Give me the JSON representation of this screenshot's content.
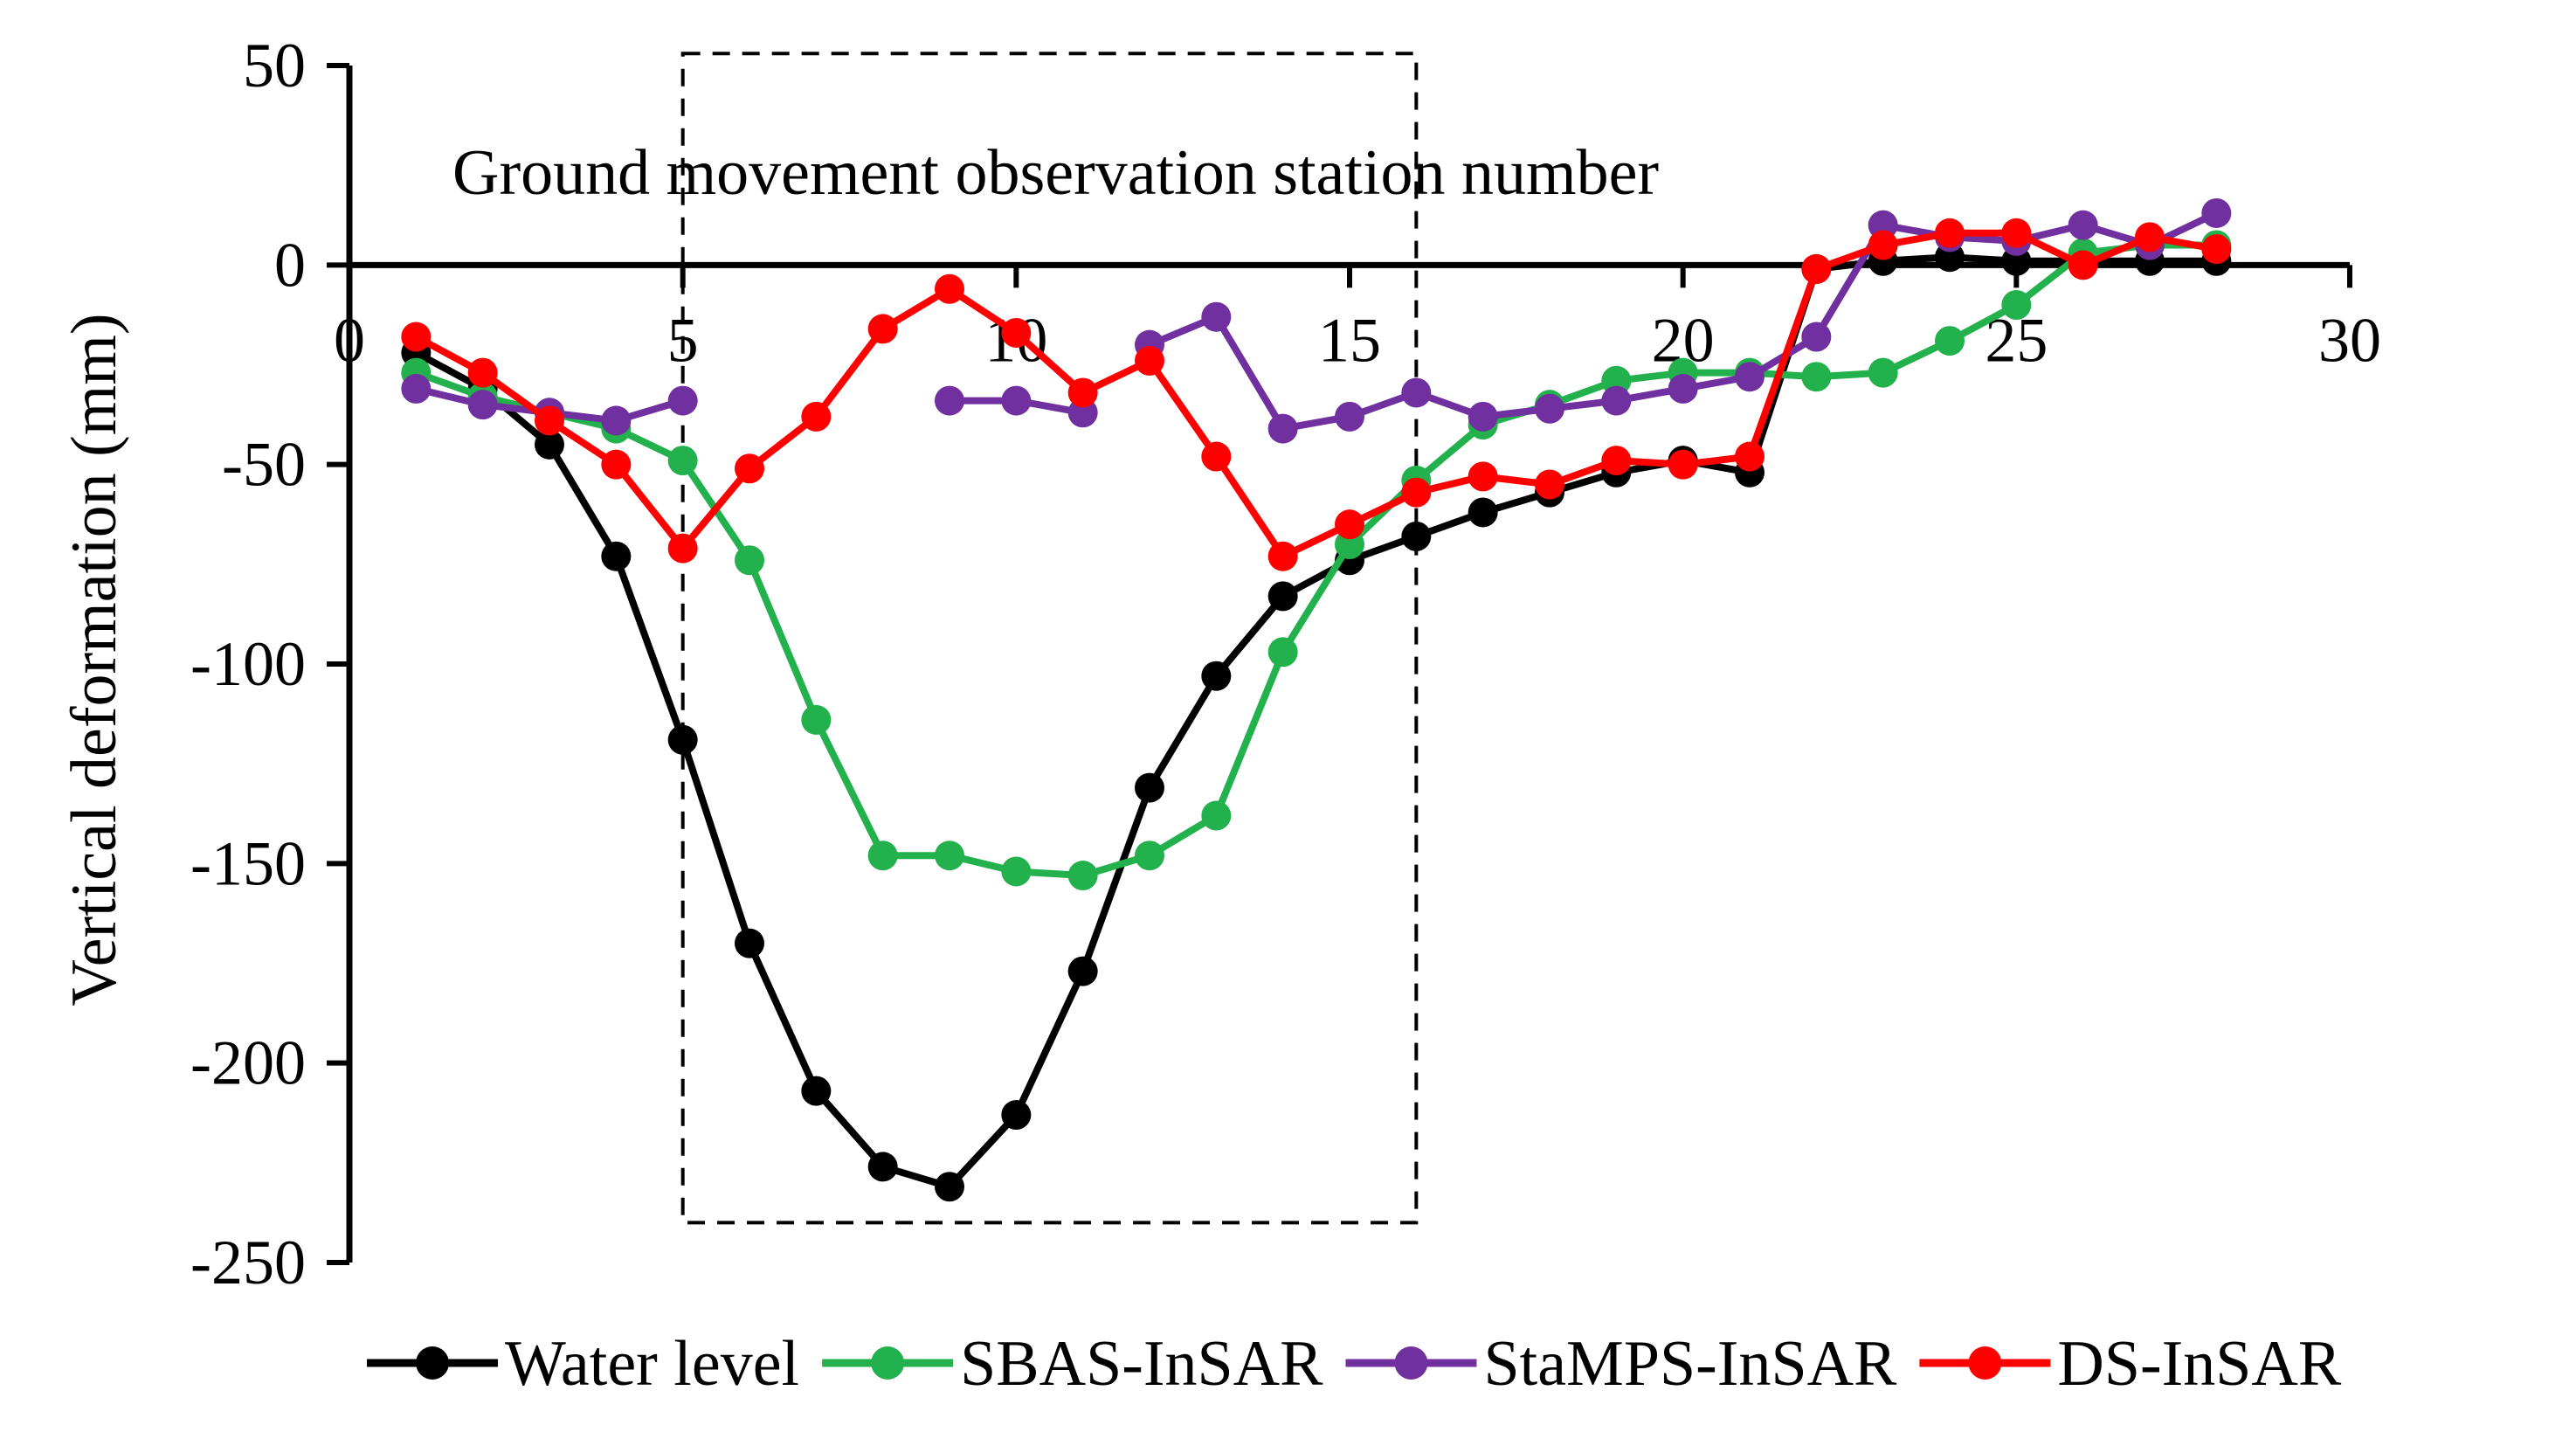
{
  "chart_data": {
    "type": "line",
    "title": "",
    "xlabel": "Ground movement observation station number",
    "ylabel": "Vertical deformation (mm)",
    "xlim": [
      0,
      30
    ],
    "ylim": [
      -250,
      50
    ],
    "xticks": [
      0,
      5,
      10,
      15,
      20,
      25,
      30
    ],
    "yticks": [
      50,
      0,
      -50,
      -100,
      -150,
      -200,
      -250
    ],
    "grid": false,
    "legend_position": "bottom",
    "highlight_box": {
      "x_range": [
        5,
        16
      ],
      "y_range": [
        -240,
        53
      ],
      "style": "dashed"
    },
    "series": [
      {
        "name": "Water level",
        "color": "#000000",
        "points": [
          [
            1,
            -22
          ],
          [
            2,
            -31
          ],
          [
            3,
            -45
          ],
          [
            4,
            -73
          ],
          [
            5,
            -119
          ],
          [
            6,
            -170
          ],
          [
            7,
            -207
          ],
          [
            8,
            -226
          ],
          [
            9,
            -231
          ],
          [
            10,
            -213
          ],
          [
            11,
            -177
          ],
          [
            12,
            -131
          ],
          [
            13,
            -103
          ],
          [
            14,
            -83
          ],
          [
            15,
            -74
          ],
          [
            16,
            -68
          ],
          [
            17,
            -62
          ],
          [
            18,
            -57
          ],
          [
            19,
            -52
          ],
          [
            20,
            -49
          ],
          [
            21,
            -52
          ],
          [
            22,
            -1
          ],
          [
            23,
            1
          ],
          [
            24,
            2
          ],
          [
            25,
            1
          ],
          [
            26,
            1
          ],
          [
            27,
            1
          ],
          [
            28,
            1
          ]
        ]
      },
      {
        "name": "SBAS-InSAR",
        "color": "#22b14c",
        "points": [
          [
            1,
            -27
          ],
          [
            2,
            -33
          ],
          [
            3,
            -37
          ],
          [
            4,
            -41
          ],
          [
            5,
            -49
          ],
          [
            6,
            -74
          ],
          [
            7,
            -114
          ],
          [
            8,
            -148
          ],
          [
            9,
            -148
          ],
          [
            10,
            -152
          ],
          [
            11,
            -153
          ],
          [
            12,
            -148
          ],
          [
            13,
            -138
          ],
          [
            14,
            -97
          ],
          [
            15,
            -70
          ],
          [
            16,
            -54
          ],
          [
            17,
            -40
          ],
          [
            18,
            -35
          ],
          [
            19,
            -29
          ],
          [
            20,
            -27
          ],
          [
            21,
            -27
          ],
          [
            22,
            -28
          ],
          [
            23,
            -27
          ],
          [
            24,
            -19
          ],
          [
            25,
            -10
          ],
          [
            26,
            3
          ],
          [
            27,
            5
          ],
          [
            28,
            5
          ]
        ]
      },
      {
        "name": "StaMPS-InSAR",
        "color": "#7030a0",
        "segments": [
          [
            [
              1,
              -31
            ],
            [
              2,
              -35
            ],
            [
              3,
              -37
            ],
            [
              4,
              -39
            ],
            [
              5,
              -34
            ]
          ],
          [
            [
              9,
              -34
            ],
            [
              10,
              -34
            ],
            [
              11,
              -37
            ]
          ],
          [
            [
              12,
              -20
            ],
            [
              13,
              -13
            ],
            [
              14,
              -41
            ],
            [
              15,
              -38
            ],
            [
              16,
              -32
            ],
            [
              17,
              -38
            ],
            [
              18,
              -36
            ],
            [
              19,
              -34
            ],
            [
              20,
              -31
            ],
            [
              21,
              -28
            ],
            [
              22,
              -18
            ],
            [
              23,
              10
            ],
            [
              24,
              7
            ],
            [
              25,
              6
            ],
            [
              26,
              10
            ],
            [
              27,
              5
            ],
            [
              28,
              13
            ]
          ]
        ]
      },
      {
        "name": "DS-InSAR",
        "color": "#ff0000",
        "points": [
          [
            1,
            -18
          ],
          [
            2,
            -27
          ],
          [
            3,
            -39
          ],
          [
            4,
            -50
          ],
          [
            5,
            -71
          ],
          [
            6,
            -51
          ],
          [
            7,
            -38
          ],
          [
            8,
            -16
          ],
          [
            9,
            -6
          ],
          [
            10,
            -17
          ],
          [
            11,
            -32
          ],
          [
            12,
            -24
          ],
          [
            13,
            -48
          ],
          [
            14,
            -73
          ],
          [
            15,
            -65
          ],
          [
            16,
            -57
          ],
          [
            17,
            -53
          ],
          [
            18,
            -55
          ],
          [
            19,
            -49
          ],
          [
            20,
            -50
          ],
          [
            21,
            -48
          ],
          [
            22,
            -1
          ],
          [
            23,
            5
          ],
          [
            24,
            8
          ],
          [
            25,
            8
          ],
          [
            26,
            0
          ],
          [
            27,
            7
          ],
          [
            28,
            4
          ]
        ]
      }
    ]
  }
}
